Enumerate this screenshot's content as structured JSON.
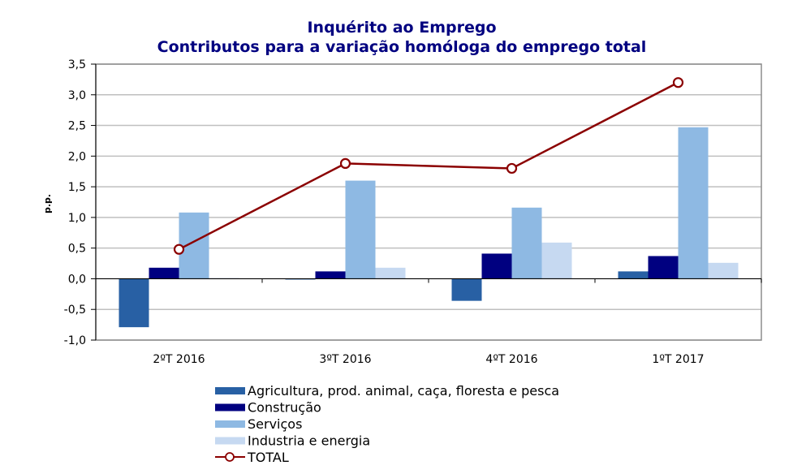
{
  "chart_data": {
    "type": "bar",
    "title": "Inquérito ao Emprego",
    "subtitle": "Contributos para a variação homóloga do emprego total",
    "xlabel": "",
    "ylabel": "p.p.",
    "ylim": [
      -1.0,
      3.5
    ],
    "yticks": [
      -1.0,
      -0.5,
      0.0,
      0.5,
      1.0,
      1.5,
      2.0,
      2.5,
      3.0,
      3.5
    ],
    "ytick_labels": [
      "-1,0",
      "-0,5",
      "0,0",
      "0,5",
      "1,0",
      "1,5",
      "2,0",
      "2,5",
      "3,0",
      "3,5"
    ],
    "grid": true,
    "legend_position": "bottom",
    "categories": [
      "2ºT 2016",
      "3ºT 2016",
      "4ºT 2016",
      "1ºT 2017"
    ],
    "series": [
      {
        "name": "Agricultura, prod. animal, caça,  floresta e pesca",
        "kind": "bar",
        "color": "#2860A4",
        "values": [
          -0.79,
          0.0,
          -0.36,
          0.12
        ]
      },
      {
        "name": "Construção",
        "kind": "bar",
        "color": "#000080",
        "values": [
          0.18,
          0.12,
          0.41,
          0.37
        ]
      },
      {
        "name": "Serviços",
        "kind": "bar",
        "color": "#8EB9E3",
        "values": [
          1.08,
          1.6,
          1.16,
          2.47
        ]
      },
      {
        "name": "Industria e energia",
        "kind": "bar",
        "color": "#C6D9F1",
        "values": [
          0.01,
          0.18,
          0.59,
          0.26
        ]
      },
      {
        "name": "TOTAL",
        "kind": "line",
        "color": "#8B0000",
        "values": [
          0.48,
          1.88,
          1.8,
          3.2
        ]
      }
    ]
  }
}
